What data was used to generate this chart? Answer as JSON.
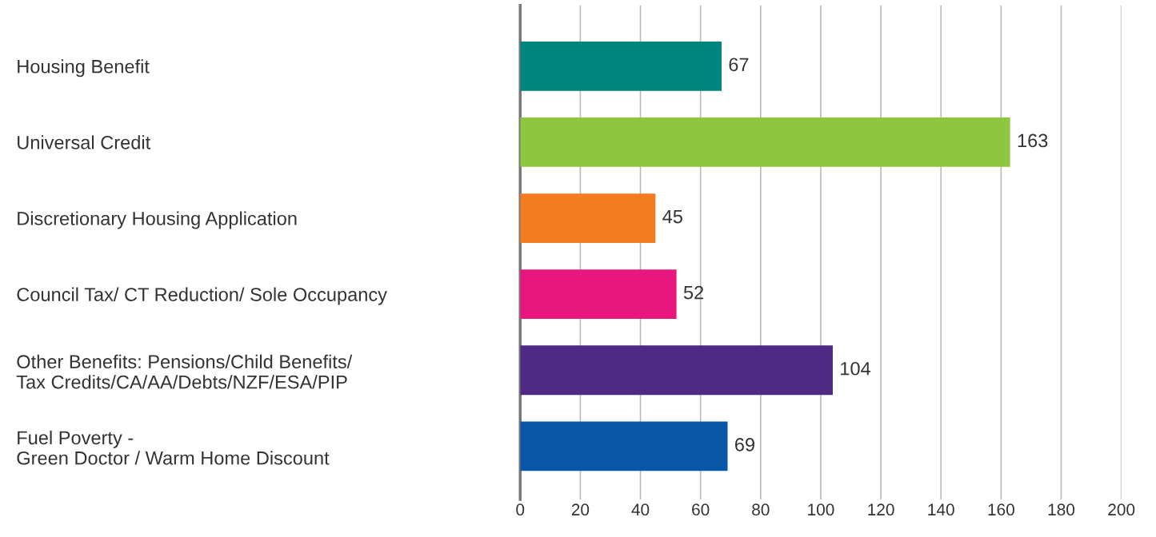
{
  "chart_data": {
    "type": "bar",
    "orientation": "horizontal",
    "categories": [
      "Housing Benefit",
      "Universal Credit",
      "Discretionary Housing Application",
      "Council Tax/ CT Reduction/ Sole Occupancy",
      "Other Benefits: Pensions/Child Benefits/\nTax Credits/CA/AA/Debts/NZF/ESA/PIP",
      "Fuel Poverty -\nGreen Doctor / Warm Home Discount"
    ],
    "values": [
      67,
      163,
      45,
      52,
      104,
      69
    ],
    "colors": [
      "#00857f",
      "#8dc63f",
      "#f47c20",
      "#e8177d",
      "#4e2a84",
      "#0857a6"
    ],
    "xlim": [
      0,
      200
    ],
    "xticks": [
      0,
      20,
      40,
      60,
      80,
      100,
      120,
      140,
      160,
      180,
      200
    ],
    "grid": "x",
    "data_labels": true
  }
}
